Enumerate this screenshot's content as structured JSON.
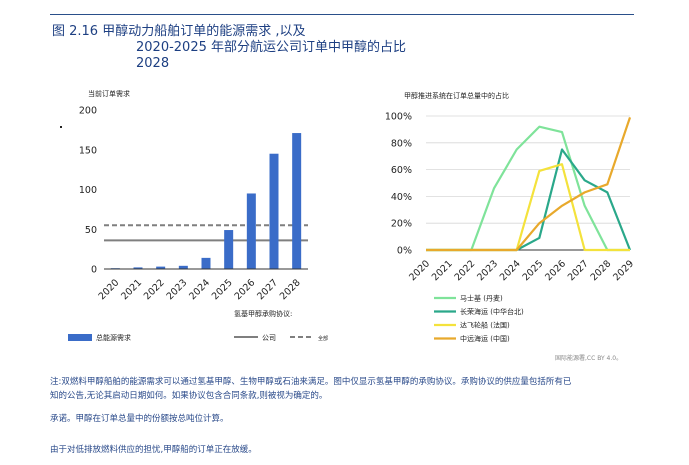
{
  "header": {
    "title_line1": "图 2.16 甲醇动力船舶订单的能源需求 ,以及",
    "title_line2": "2020-2025 年部分航运公司订单中甲醇的占比",
    "title_line3": "2028"
  },
  "footer": {
    "source": "国际能源署,CC BY 4.0。",
    "note1": "注:双燃料甲醇船舶的能源需求可以通过氢基甲醇、生物甲醇或石油来满足。图中仅显示氢基甲醇的承购协议。承购协议的供应量包括所有已",
    "note2": "知的公告,无论其启动日期如何。如果协议包含合同条款,则被视为确定的。",
    "note3": "承诺。甲醇在订单总量中的份额按总吨位计算。",
    "note4": "由于对低排放燃料供应的担忧,甲醇船的订单正在放缓。"
  },
  "chart_data": [
    {
      "type": "bar",
      "title": "当前订单需求",
      "categories": [
        "2020",
        "2021",
        "2022",
        "2023",
        "2024",
        "2025",
        "2026",
        "2027",
        "2028"
      ],
      "series": [
        {
          "name": "总能源需求",
          "values": [
            1,
            2,
            3,
            4,
            14,
            49,
            95,
            145,
            171
          ],
          "color": "#3a6cc8"
        }
      ],
      "reference_lines": [
        {
          "name": "公司",
          "value": 36,
          "style": "solid",
          "color": "#7f7f7f"
        },
        {
          "name": "全部",
          "value": 55,
          "style": "dashed",
          "color": "#7f7f7f"
        }
      ],
      "legend_heading": "氢基甲醇承购协议:",
      "ylim": [
        0,
        200
      ],
      "yticks": [
        0,
        50,
        100,
        150,
        200
      ],
      "grid": false,
      "legend": "bottom"
    },
    {
      "type": "line",
      "title": "甲醇推进系统在订单总量中的占比",
      "x": [
        "2020",
        "2021",
        "2022",
        "2023",
        "2024",
        "2025",
        "2026",
        "2027",
        "2028",
        "2029"
      ],
      "series": [
        {
          "name": "马士基 (丹麦)",
          "color": "#7fe39a",
          "values": [
            0,
            0,
            0,
            46,
            75,
            92,
            88,
            33,
            0,
            0
          ]
        },
        {
          "name": "长荣海运 (中华台北)",
          "color": "#2aa88a",
          "values": [
            0,
            0,
            0,
            0,
            0,
            9,
            75,
            52,
            43,
            0
          ]
        },
        {
          "name": "达飞轮船 (法国)",
          "color": "#f4e23c",
          "values": [
            0,
            0,
            0,
            0,
            0,
            59,
            64,
            0,
            0,
            0
          ]
        },
        {
          "name": "中远海运 (中国)",
          "color": "#e8a92c",
          "values": [
            0,
            0,
            0,
            0,
            0,
            20,
            33,
            43,
            49,
            99
          ]
        }
      ],
      "ylim": [
        0,
        100
      ],
      "yticks": [
        "0%",
        "20%",
        "40%",
        "60%",
        "80%",
        "100%"
      ],
      "grid": true,
      "legend": "bottom"
    }
  ]
}
